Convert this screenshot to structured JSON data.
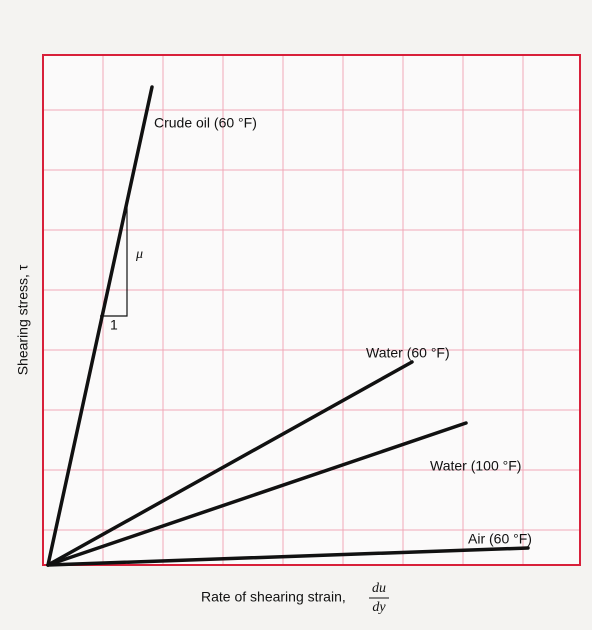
{
  "axes": {
    "y_label": "Shearing stress, τ",
    "x_label": "Rate of shearing strain,",
    "x_fraction_numerator": "du",
    "x_fraction_denominator": "dy"
  },
  "curves": [
    {
      "label": "Crude oil (60 °F)"
    },
    {
      "label": "Water (60 °F)"
    },
    {
      "label": "Water (100 °F)"
    },
    {
      "label": "Air (60 °F)"
    }
  ],
  "slope": {
    "rise": "μ",
    "run": "1"
  }
}
